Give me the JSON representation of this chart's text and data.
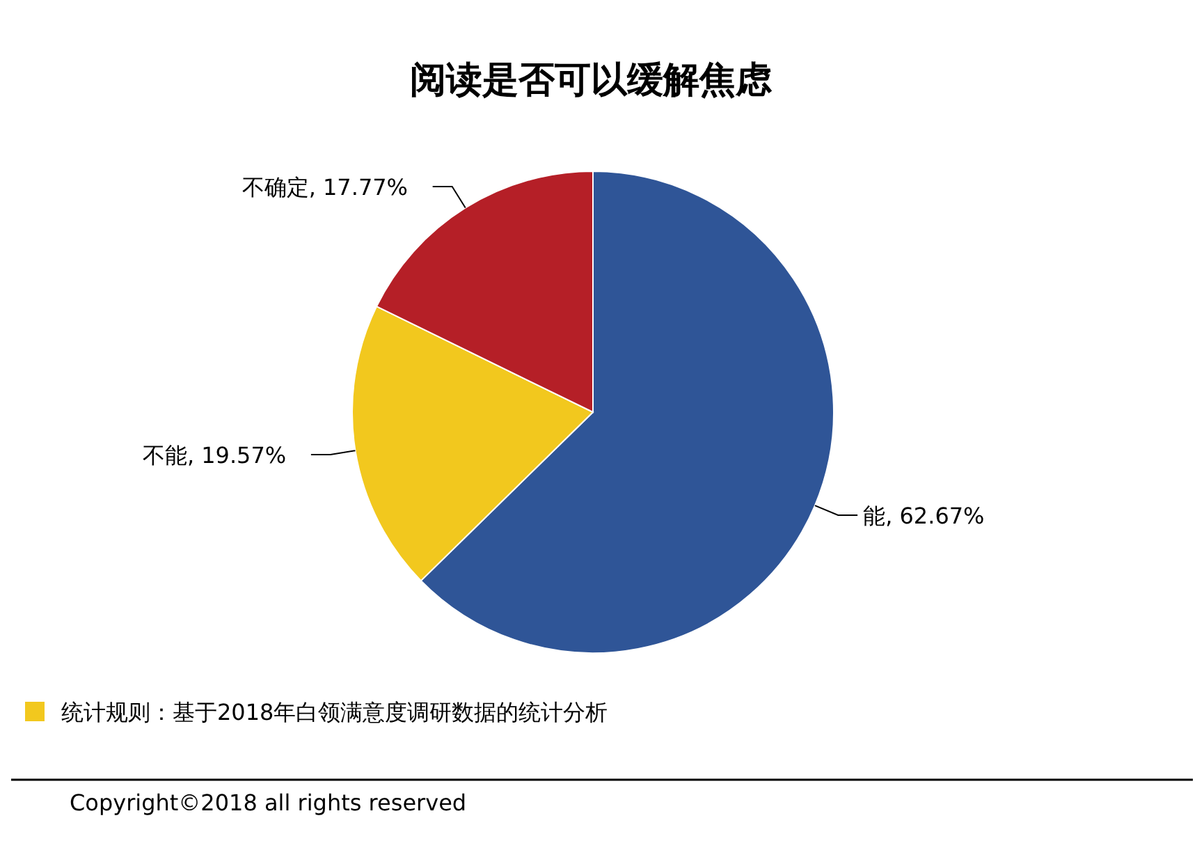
{
  "chart_data": {
    "type": "pie",
    "title": "阅读是否可以缓解焦虑",
    "categories": [
      "能",
      "不能",
      "不确定"
    ],
    "values": [
      62.67,
      19.57,
      17.77
    ],
    "colors": [
      "#2f5597",
      "#f2c81e",
      "#b51f27"
    ],
    "value_labels": [
      ", 62.67%",
      ", 19.57%",
      ", 17.77%"
    ],
    "annotations": [
      "统计规则：基于2018年白领满意度调研数据的统计分析",
      "Copyright©2018 all rights reserved"
    ]
  }
}
